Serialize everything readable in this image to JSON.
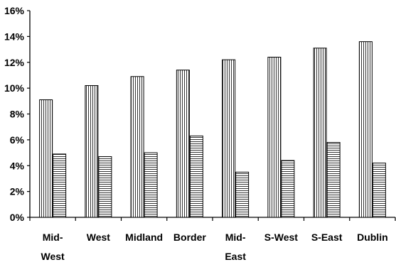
{
  "chart_data": {
    "type": "bar",
    "categories": [
      [
        "Mid-",
        "West"
      ],
      [
        "West"
      ],
      [
        "Midland"
      ],
      [
        "Border"
      ],
      [
        "Mid-",
        "East"
      ],
      [
        "S-West"
      ],
      [
        "S-East"
      ],
      [
        "Dublin"
      ]
    ],
    "series": [
      {
        "pattern": "vertical-lines",
        "values": [
          9.1,
          10.2,
          10.9,
          11.4,
          12.2,
          12.4,
          13.1,
          13.6
        ]
      },
      {
        "pattern": "horizontal-lines",
        "values": [
          4.9,
          4.7,
          5.0,
          6.3,
          3.5,
          4.4,
          5.8,
          4.2
        ]
      }
    ],
    "yticks": [
      "0%",
      "2%",
      "4%",
      "6%",
      "8%",
      "10%",
      "12%",
      "14%",
      "16%"
    ],
    "ylim": [
      0,
      16
    ],
    "title": "",
    "xlabel": "",
    "ylabel": "",
    "grid": false,
    "legend": "none"
  }
}
